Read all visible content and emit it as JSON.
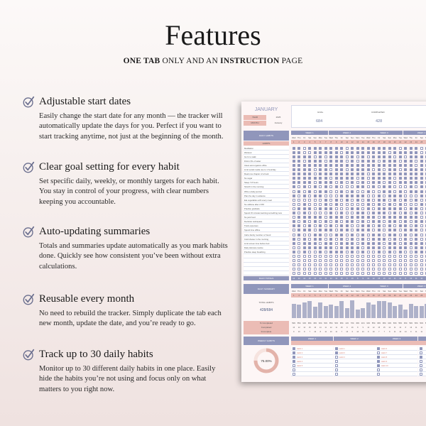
{
  "header": {
    "title": "Features",
    "subtitle_parts": [
      {
        "text": "ONE TAB",
        "bold": true
      },
      {
        "text": " ONLY AND AN ",
        "bold": false
      },
      {
        "text": "INSTRUCTION",
        "bold": true
      },
      {
        "text": " PAGE",
        "bold": false
      }
    ]
  },
  "features": [
    {
      "title": "Adjustable start dates",
      "body": "Easily change the start date for any month — the tracker will automatically update the days for you. Perfect if you want to start tracking anytime, not just at the beginning of the month."
    },
    {
      "title": "Clear goal setting for every habit",
      "body": "Set specific daily, weekly, or monthly targets for each habit. You stay in control of your progress, with clear numbers keeping you accountable."
    },
    {
      "title": "Auto-updating summaries",
      "body": "Totals and summaries update automatically as you mark habits done. Quickly see how consistent you’ve been without extra calculations."
    },
    {
      "title": "Reusable every month",
      "body": "No need to rebuild the tracker. Simply duplicate the tab each new month, update the date, and you’re ready to go."
    },
    {
      "title": "Track up to 30 daily habits",
      "body": "Monitor up to 30 different daily habits in one place. Easily hide the habits you’re not using and focus only on what matters to you right now."
    }
  ],
  "icons": {
    "feature": "check-circle-icon"
  },
  "colors": {
    "purple": "#9096bb",
    "pink": "#ebbcb5",
    "bar": "#aeb1c9"
  },
  "sheet": {
    "month_title": "JANUARY",
    "year_label": "YEAR",
    "year": "2025",
    "month_label": "MONTH",
    "month": "January",
    "goal_label": "GOAL",
    "goal": "684",
    "completed_label": "COMPLETED",
    "completed": "428",
    "daily_habits_label": "DAILY HABITS",
    "habits_label": "HABITS",
    "daily_totals_label": "DAILY TOTALS",
    "daily_summary_label": "DAILY SUMMARY",
    "total_habits_label": "TOTAL HABITS",
    "total_habits": "428/684",
    "stat_labels": [
      "% Completed",
      "Completed",
      "Incomplete"
    ],
    "weekly_habits_label": "WEEKLY HABITS",
    "weekly_percent": "75.00%",
    "weekly_fraction": 0.75,
    "weeks": [
      "WEEK 1",
      "WEEK 2",
      "WEEK 3",
      "WEEK 4",
      "WEEK 5"
    ],
    "days": [
      "Wed",
      "Thu",
      "Fri",
      "Sat",
      "Sun",
      "Mon",
      "Tue",
      "Wed",
      "Thu",
      "Fri",
      "Sat",
      "Sun",
      "Mon",
      "Tue",
      "Wed",
      "Thu",
      "Fri",
      "Sat",
      "Sun",
      "Mon",
      "Tue",
      "Wed",
      "Thu",
      "Fri",
      "Sat",
      "Sun",
      "Mon",
      "Tue",
      "Wed",
      "Thu",
      "Fri"
    ],
    "dates": [
      "1",
      "2",
      "3",
      "4",
      "5",
      "6",
      "7",
      "8",
      "9",
      "10",
      "11",
      "12",
      "13",
      "14",
      "15",
      "16",
      "17",
      "18",
      "19",
      "20",
      "21",
      "22",
      "23",
      "24",
      "25",
      "26",
      "27",
      "28",
      "29",
      "30",
      "31"
    ],
    "habits": [
      {
        "name": "Meditation",
        "checks": "1101111111011111111101110111011"
      },
      {
        "name": "Workout",
        "checks": "1100111110111111110111110110110"
      },
      {
        "name": "Go for a walk",
        "checks": "1111010111010101111010111101011"
      },
      {
        "name": "Drink 2,5L of water",
        "checks": "1101110111010111011101101110101"
      },
      {
        "name": "Clean and organize office",
        "checks": "1111111111111111111111101111111"
      },
      {
        "name": "Limit social media use to 1 hour/day",
        "checks": "1111011011011110101101111010110"
      },
      {
        "name": "Read one chapter of a book",
        "checks": "1111011111111101111111111011110"
      },
      {
        "name": "No sugar",
        "checks": "1111111011110101111011111011011"
      },
      {
        "name": "Sleep 7-8 hours",
        "checks": "1111011101010101101011111011101"
      },
      {
        "name": "Stretch in the morning",
        "checks": "1010101010001101011000101011000"
      },
      {
        "name": "Write a daily journal",
        "checks": "0101011001010010011010111001010"
      },
      {
        "name": "Plan the day in advance",
        "checks": "1010110001111100101110001110101"
      },
      {
        "name": "Eat vegetables with every meal",
        "checks": "0000001010101010110101010101010"
      },
      {
        "name": "No caffeine after 2 PM",
        "checks": "0010001010000010101010001011010"
      },
      {
        "name": "Practice gratitude",
        "checks": "0111011100011010111110110101110"
      },
      {
        "name": "Spend 15 minutes learning something new",
        "checks": "1010000101001101110101010001010"
      },
      {
        "name": "No junk food",
        "checks": "0111110111011111011111110110111"
      },
      {
        "name": "Declutter workspace",
        "checks": "1010101010110101101101011010101"
      },
      {
        "name": "Track expenses",
        "checks": "1101010101100110101011010101101"
      },
      {
        "name": "Spend time offline",
        "checks": "0111011101101110101101110110110"
      },
      {
        "name": "Call a family member or friend",
        "checks": "0100110011010101101101010110101"
      },
      {
        "name": "Cold shower in the morning",
        "checks": "1010110101010101110101010110101"
      },
      {
        "name": "Limit screen time before bed",
        "checks": "1011101101110111101101111011101"
      },
      {
        "name": "Daily skincare routine",
        "checks": "0011111101111011101111011110111"
      },
      {
        "name": "Practice deep breathing",
        "checks": "1010010111010100101010011101011"
      },
      {
        "name": "",
        "checks": "0000000000000000000000000000000"
      },
      {
        "name": "",
        "checks": "0000000000000000000000000000000"
      },
      {
        "name": "",
        "checks": "0000000000000000000000000000000"
      },
      {
        "name": "",
        "checks": "0000000000000000000000000000000"
      },
      {
        "name": "",
        "checks": "0000000000000000000000000000000"
      }
    ],
    "daily_totals": [
      "13",
      "12",
      "14",
      "15",
      "10",
      "14",
      "11",
      "12",
      "11",
      "15",
      "9",
      "16",
      "8",
      "9",
      "14",
      "12",
      "15",
      "15",
      "14",
      "11",
      "12",
      "8",
      "13",
      "11",
      "11",
      "13",
      "12",
      "14",
      "13",
      "14",
      "11"
    ],
    "percent_completed": [
      "59%",
      "55%",
      "64%",
      "68%",
      "45%",
      "64%",
      "50%",
      "55%",
      "50%",
      "68%",
      "41%",
      "73%",
      "36%",
      "41%",
      "64%",
      "55%",
      "68%",
      "68%",
      "64%",
      "50%",
      "55%",
      "36%",
      "59%",
      "50%",
      "50%",
      "59%",
      "55%",
      "64%",
      "59%",
      "64%",
      "50%"
    ],
    "completed_row": [
      "13",
      "12",
      "14",
      "15",
      "10",
      "14",
      "11",
      "12",
      "11",
      "15",
      "9",
      "16",
      "8",
      "9",
      "14",
      "12",
      "15",
      "15",
      "14",
      "11",
      "12",
      "8",
      "13",
      "11",
      "11",
      "13",
      "12",
      "14",
      "13",
      "14",
      "11"
    ],
    "incomplete_row": [
      "9",
      "10",
      "8",
      "7",
      "12",
      "8",
      "11",
      "10",
      "11",
      "7",
      "13",
      "6",
      "14",
      "13",
      "8",
      "10",
      "7",
      "7",
      "8",
      "11",
      "10",
      "14",
      "9",
      "11",
      "11",
      "9",
      "10",
      "8",
      "9",
      "8",
      "11"
    ],
    "weekly": [
      {
        "week": "WEEK 1",
        "items": [
          {
            "label": "Habit 1",
            "done": true
          },
          {
            "label": "Habit 2",
            "done": true
          },
          {
            "label": "Habit 3",
            "done": true
          },
          {
            "label": "Habit 4",
            "done": true
          },
          {
            "label": "Habit 5",
            "done": false
          },
          {
            "label": "",
            "done": false
          },
          {
            "label": "",
            "done": false
          }
        ]
      },
      {
        "week": "WEEK 2",
        "items": [
          {
            "label": "Habit 1",
            "done": true
          },
          {
            "label": "Habit 6",
            "done": true
          },
          {
            "label": "Habit 3",
            "done": false
          },
          {
            "label": "",
            "done": false
          },
          {
            "label": "",
            "done": false
          },
          {
            "label": "",
            "done": false
          },
          {
            "label": "",
            "done": false
          }
        ]
      },
      {
        "week": "WEEK 3",
        "items": [
          {
            "label": "Habit 6",
            "done": true
          },
          {
            "label": "Habit 7",
            "done": false
          },
          {
            "label": "Habit 8",
            "done": true
          },
          {
            "label": "Habit 9",
            "done": true
          },
          {
            "label": "Habit 10",
            "done": true
          },
          {
            "label": "",
            "done": false
          },
          {
            "label": "",
            "done": false
          }
        ]
      },
      {
        "week": "WEEK 4",
        "items": [
          {
            "label": "",
            "done": true
          },
          {
            "label": "",
            "done": false
          },
          {
            "label": "",
            "done": true
          },
          {
            "label": "",
            "done": false
          },
          {
            "label": "",
            "done": false
          },
          {
            "label": "",
            "done": false
          },
          {
            "label": "",
            "done": false
          }
        ]
      }
    ]
  }
}
